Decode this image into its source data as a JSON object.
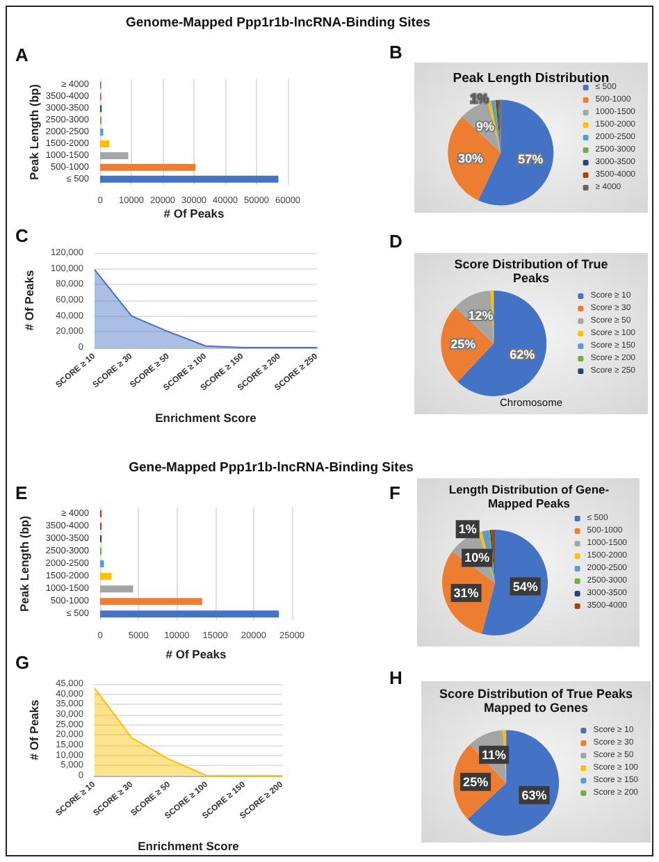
{
  "chart_data": [
    {
      "type": "bar",
      "orientation": "horizontal",
      "title": "Genome-Mapped Ppp1r1b-lncRNA-Binding Sites",
      "annotations": [
        "A"
      ],
      "xlabel": "# Of Peaks",
      "ylabel": "Peak Length (bp)",
      "categories": [
        "≥ 4000",
        "3500-4000",
        "3000-3500",
        "2500-3000",
        "2000-2500",
        "1500-2000",
        "1000-1500",
        "500-1000",
        "≤ 500"
      ],
      "values": [
        300,
        300,
        500,
        500,
        1000,
        3000,
        9000,
        30500,
        57000
      ],
      "colors": [
        "#5a5fb0",
        "#c0392b",
        "#264478",
        "#70ad47",
        "#5b9bd5",
        "#ffc000",
        "#a5a5a5",
        "#ed7d31",
        "#4472c4"
      ],
      "xlim": [
        0,
        60000
      ],
      "xticks": [
        0,
        10000,
        20000,
        30000,
        40000,
        50000,
        60000
      ],
      "grid": "x"
    },
    {
      "type": "pie",
      "title": "Peak Length Distribution",
      "annotations": [
        "B"
      ],
      "legend": "right",
      "categories": [
        "≤ 500",
        "500-1000",
        "1000-1500",
        "1500-2000",
        "2000-2500",
        "2500-3000",
        "3000-3500",
        "3500-4000",
        "≥ 4000"
      ],
      "values": [
        57,
        30,
        9,
        1,
        1,
        0.5,
        0.5,
        0.5,
        0.5
      ],
      "value_labels": [
        "57%",
        "30%",
        "9%",
        "1%",
        null,
        null,
        null,
        null,
        null
      ],
      "colors": [
        "#4472c4",
        "#ed7d31",
        "#a5a5a5",
        "#ffc000",
        "#5b9bd5",
        "#70ad47",
        "#264478",
        "#9e480e",
        "#636363"
      ]
    },
    {
      "type": "area",
      "annotations": [
        "C"
      ],
      "xlabel": "Enrichment Score",
      "ylabel": "# Of Peaks",
      "categories": [
        "SCORE ≥ 10",
        "SCORE ≥ 30",
        "SCORE ≥ 50",
        "SCORE ≥ 100",
        "SCORE ≥ 150",
        "SCORE ≥ 200",
        "SCORE ≥ 250"
      ],
      "values": [
        99000,
        40000,
        20000,
        2000,
        0,
        0,
        0
      ],
      "color": "#4472c4",
      "ylim": [
        0,
        120000
      ],
      "yticks": [
        0,
        {
          "value": 20000,
          "label": "20,000"
        },
        {
          "value": 40000,
          "label": "40,000"
        },
        {
          "value": 60000,
          "label": "60,000"
        },
        {
          "value": 80000,
          "label": "80,000"
        },
        {
          "value": 100000,
          "label": "100,000"
        },
        {
          "value": 120000,
          "label": "120,000"
        }
      ],
      "grid": "y"
    },
    {
      "type": "pie",
      "title": "Score Distribution of True Peaks",
      "annotations": [
        "D",
        "Chromosome"
      ],
      "legend": "right",
      "categories": [
        "Score ≥ 10",
        "Score ≥ 30",
        "Score ≥ 50",
        "Score ≥ 100",
        "Score ≥ 150",
        "Score ≥ 200",
        "Score ≥ 250"
      ],
      "values": [
        62,
        25,
        12,
        1,
        0,
        0,
        0
      ],
      "value_labels": [
        "62%",
        "25%",
        "12%",
        null,
        null,
        null,
        null
      ],
      "colors": [
        "#4472c4",
        "#ed7d31",
        "#a5a5a5",
        "#ffc000",
        "#5b9bd5",
        "#70ad47",
        "#264478"
      ]
    },
    {
      "type": "bar",
      "orientation": "horizontal",
      "title": "Gene-Mapped Ppp1r1b-lncRNA-Binding Sites",
      "annotations": [
        "E"
      ],
      "xlabel": "# Of Peaks",
      "ylabel": "Peak Length (bp)",
      "categories": [
        "≥ 4000",
        "3500-4000",
        "3000-3500",
        "2500-3000",
        "2000-2500",
        "1500-2000",
        "1000-1500",
        "500-1000",
        "≤ 500"
      ],
      "values": [
        200,
        200,
        200,
        200,
        500,
        1500,
        4300,
        13300,
        23300
      ],
      "colors": [
        "#c0392b",
        "#c0392b",
        "#264478",
        "#70ad47",
        "#5b9bd5",
        "#ffc000",
        "#a5a5a5",
        "#ed7d31",
        "#4472c4"
      ],
      "xlim": [
        0,
        25000
      ],
      "xticks": [
        0,
        5000,
        10000,
        15000,
        20000,
        25000
      ],
      "grid": "x"
    },
    {
      "type": "pie",
      "title": "Length Distribution of Gene-Mapped Peaks",
      "annotations": [
        "F"
      ],
      "legend": "right",
      "categories": [
        "≤ 500",
        "500-1000",
        "1000-1500",
        "1500-2000",
        "2000-2500",
        "2500-3000",
        "3000-3500",
        "3500-4000"
      ],
      "values": [
        54,
        31,
        10,
        1,
        2,
        0.5,
        0.5,
        1
      ],
      "value_labels": [
        "54%",
        "31%",
        "10%",
        "1%",
        null,
        null,
        null,
        null
      ],
      "colors": [
        "#4472c4",
        "#ed7d31",
        "#a5a5a5",
        "#ffc000",
        "#5b9bd5",
        "#70ad47",
        "#264478",
        "#9e480e"
      ]
    },
    {
      "type": "area",
      "annotations": [
        "G"
      ],
      "xlabel": "Enrichment Score",
      "ylabel": "# Of Peaks",
      "categories": [
        "SCORE ≥ 10",
        "SCORE ≥ 30",
        "SCORE ≥ 50",
        "SCORE ≥ 100",
        "SCORE ≥ 150",
        "SCORE ≥ 200"
      ],
      "values": [
        43000,
        18500,
        8000,
        0,
        0,
        0
      ],
      "color": "#ffc000",
      "ylim": [
        0,
        45000
      ],
      "yticks": [
        0,
        {
          "value": 5000,
          "label": "5,000"
        },
        {
          "value": 10000,
          "label": "10,000"
        },
        {
          "value": 15000,
          "label": "15,000"
        },
        {
          "value": 20000,
          "label": "20,000"
        },
        {
          "value": 25000,
          "label": "25,000"
        },
        {
          "value": 30000,
          "label": "30,000"
        },
        {
          "value": 35000,
          "label": "35,000"
        },
        {
          "value": 40000,
          "label": "40,000"
        },
        {
          "value": 45000,
          "label": "45,000"
        }
      ],
      "grid": "y"
    },
    {
      "type": "pie",
      "title": "Score Distribution of True Peaks Mapped to Genes",
      "annotations": [
        "H"
      ],
      "legend": "right",
      "categories": [
        "Score ≥ 10",
        "Score ≥ 30",
        "Score ≥ 50",
        "Score ≥ 100",
        "Score ≥ 150",
        "Score ≥ 200"
      ],
      "values": [
        63,
        25,
        11,
        1,
        0,
        0
      ],
      "value_labels": [
        "63%",
        "25%",
        "11%",
        null,
        null,
        null
      ],
      "colors": [
        "#4472c4",
        "#ed7d31",
        "#a5a5a5",
        "#ffc000",
        "#5b9bd5",
        "#70ad47"
      ]
    }
  ]
}
